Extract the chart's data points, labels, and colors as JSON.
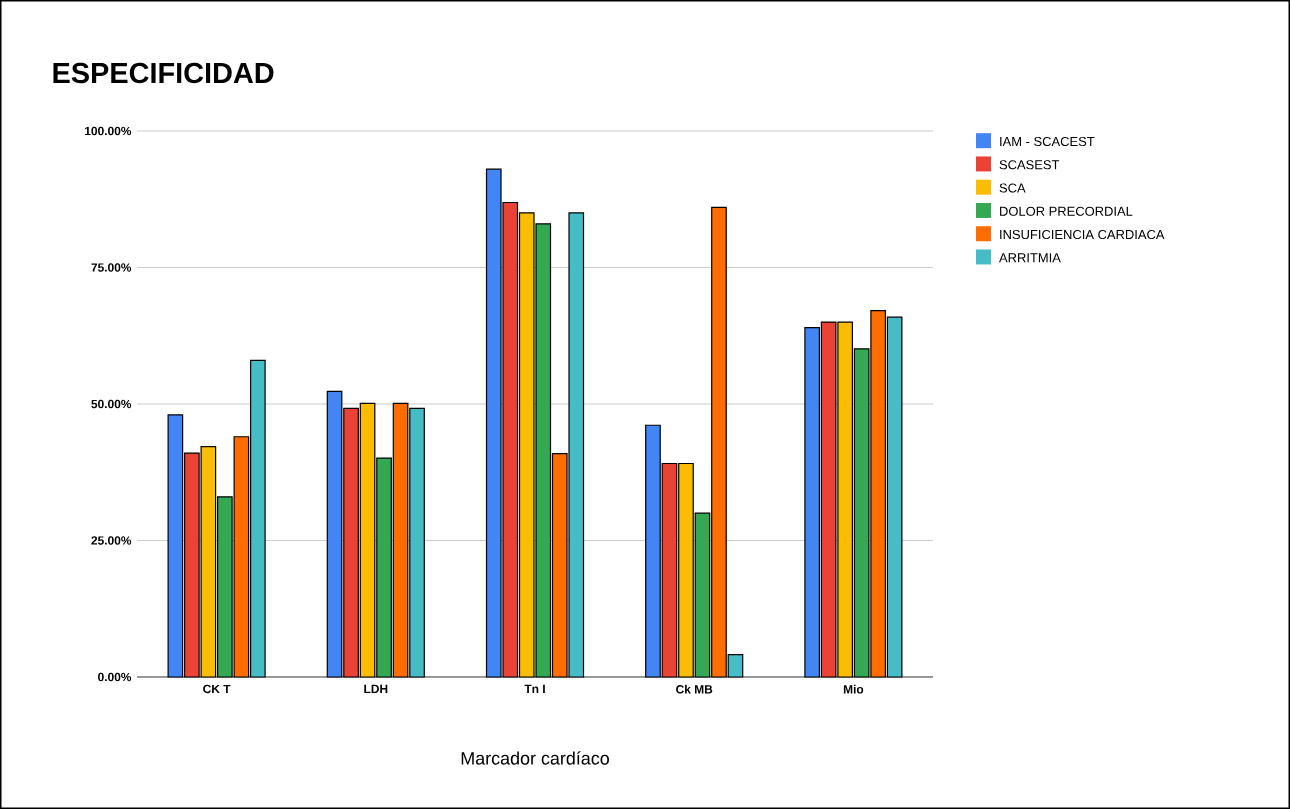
{
  "chart_data": {
    "type": "bar",
    "title": "ESPECIFICIDAD",
    "xlabel": "Marcador cardíaco",
    "categories": [
      "CK T",
      "LDH",
      "Tn I",
      "Ck MB",
      "Mio"
    ],
    "series": [
      {
        "name": "IAM - SCACEST",
        "color": "#4285f4",
        "values": [
          48.0,
          52.3,
          93.0,
          46.1,
          64.0
        ]
      },
      {
        "name": "SCASEST",
        "color": "#ea4335",
        "values": [
          41.0,
          49.2,
          86.9,
          39.1,
          65.0
        ]
      },
      {
        "name": "SCA",
        "color": "#fbbc04",
        "values": [
          42.2,
          50.1,
          85.0,
          39.1,
          65.0
        ]
      },
      {
        "name": "DOLOR PRECORDIAL",
        "color": "#34a853",
        "values": [
          33.0,
          40.1,
          83.0,
          30.0,
          60.1
        ]
      },
      {
        "name": "INSUFICIENCIA CARDIACA",
        "color": "#ff6d01",
        "values": [
          44.0,
          50.1,
          40.9,
          86.0,
          67.1
        ]
      },
      {
        "name": "ARRITMIA",
        "color": "#46bdc6",
        "values": [
          58.0,
          49.2,
          85.0,
          4.1,
          65.9
        ]
      }
    ],
    "ylim": [
      0,
      100
    ],
    "yticks": [
      {
        "value": 0,
        "label": "0.00%"
      },
      {
        "value": 25,
        "label": "25.00%"
      },
      {
        "value": 50,
        "label": "50.00%"
      },
      {
        "value": 75,
        "label": "75.00%"
      },
      {
        "value": 100,
        "label": "100.00%"
      }
    ],
    "grid": "y",
    "legend": "top right"
  }
}
